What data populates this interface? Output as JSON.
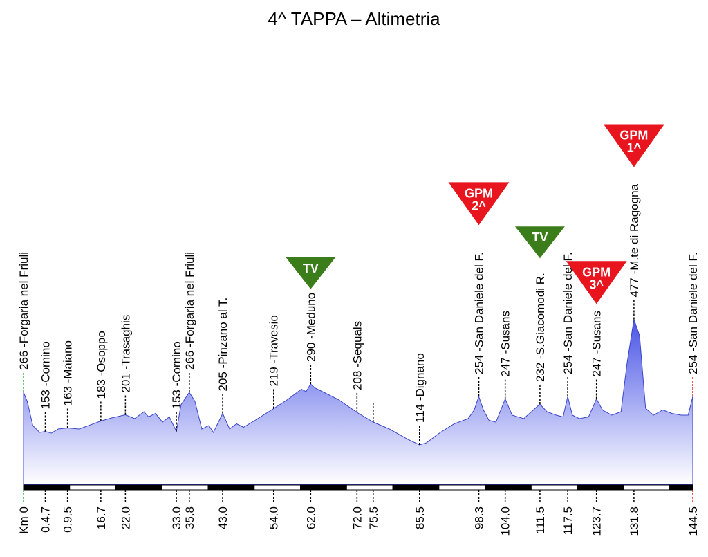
{
  "title": "4^ TAPPA – Altimetria",
  "colors": {
    "start": "#3cb44b",
    "finish": "#e52020",
    "profile_top": "#4a55e6",
    "profile_bottom": "#ffffff",
    "gpm": "#e8141e",
    "tv": "#3a7d1a"
  },
  "chart_data": {
    "type": "area",
    "xlim": [
      0,
      144.5
    ],
    "ylim": [
      0,
      500
    ],
    "profile": [
      [
        0,
        266
      ],
      [
        0.8,
        240
      ],
      [
        2,
        170
      ],
      [
        3.5,
        150
      ],
      [
        4.7,
        153
      ],
      [
        6,
        148
      ],
      [
        7.5,
        160
      ],
      [
        9.5,
        163
      ],
      [
        12,
        160
      ],
      [
        16.7,
        183
      ],
      [
        19,
        192
      ],
      [
        22,
        201
      ],
      [
        24,
        190
      ],
      [
        26,
        210
      ],
      [
        27,
        195
      ],
      [
        28.5,
        205
      ],
      [
        30,
        180
      ],
      [
        31.5,
        195
      ],
      [
        33,
        153
      ],
      [
        34,
        230
      ],
      [
        35.8,
        266
      ],
      [
        37,
        240
      ],
      [
        38.5,
        160
      ],
      [
        40,
        170
      ],
      [
        41,
        150
      ],
      [
        42,
        178
      ],
      [
        43,
        205
      ],
      [
        44.5,
        160
      ],
      [
        46,
        175
      ],
      [
        47.5,
        165
      ],
      [
        50,
        185
      ],
      [
        54,
        219
      ],
      [
        57,
        245
      ],
      [
        60,
        275
      ],
      [
        61,
        268
      ],
      [
        62,
        290
      ],
      [
        63,
        278
      ],
      [
        65,
        265
      ],
      [
        68,
        245
      ],
      [
        72,
        208
      ],
      [
        75.5,
        180
      ],
      [
        79,
        160
      ],
      [
        83,
        130
      ],
      [
        85.5,
        114
      ],
      [
        87,
        120
      ],
      [
        90,
        150
      ],
      [
        93,
        175
      ],
      [
        96,
        190
      ],
      [
        97.3,
        215
      ],
      [
        98.3,
        254
      ],
      [
        99.3,
        215
      ],
      [
        100.5,
        185
      ],
      [
        102,
        180
      ],
      [
        104,
        247
      ],
      [
        105.5,
        200
      ],
      [
        108,
        190
      ],
      [
        111.5,
        232
      ],
      [
        113,
        210
      ],
      [
        115,
        200
      ],
      [
        116.5,
        195
      ],
      [
        117.5,
        254
      ],
      [
        118.5,
        200
      ],
      [
        120,
        190
      ],
      [
        122,
        195
      ],
      [
        123.7,
        247
      ],
      [
        125,
        215
      ],
      [
        127,
        200
      ],
      [
        129,
        210
      ],
      [
        130.3,
        350
      ],
      [
        131.8,
        477
      ],
      [
        133,
        430
      ],
      [
        134.3,
        220
      ],
      [
        136,
        200
      ],
      [
        138,
        215
      ],
      [
        140,
        205
      ],
      [
        142,
        200
      ],
      [
        143.5,
        200
      ],
      [
        144.5,
        254
      ]
    ],
    "waypoints": [
      {
        "km": 0,
        "km_label": "Km 0",
        "alt": 266,
        "name": "Forgaria nel Friuli",
        "label": "266 -Forgaria nel Friuli",
        "type": "start"
      },
      {
        "km": 4.7,
        "km_label": "0.4.7",
        "alt": 153,
        "label": "153 -Cornino"
      },
      {
        "km": 9.5,
        "km_label": "0.9.5",
        "alt": 163,
        "label": "163 -Maiano"
      },
      {
        "km": 16.7,
        "km_label": "16.7",
        "alt": 183,
        "label": "183 -Osoppo"
      },
      {
        "km": 22.0,
        "km_label": "22.0",
        "alt": 201,
        "label": "201 -Trasaghis"
      },
      {
        "km": 33.0,
        "km_label": "33.0",
        "alt": 153,
        "label": "153 -Cornino"
      },
      {
        "km": 35.8,
        "km_label": "35.8",
        "alt": 266,
        "label": "266 -Forgaria nel Friuli"
      },
      {
        "km": 43.0,
        "km_label": "43.0",
        "alt": 205,
        "label": "205 -Pinzano al T."
      },
      {
        "km": 54.0,
        "km_label": "54.0",
        "alt": 219,
        "label": "219 -Travesio"
      },
      {
        "km": 62.0,
        "km_label": "62.0",
        "alt": 290,
        "label": "290 -Meduno",
        "marker": "TV"
      },
      {
        "km": 72.0,
        "km_label": "72.0",
        "alt": 208,
        "label": "208 -Sequals"
      },
      {
        "km": 75.5,
        "km_label": "75.5",
        "alt": 180,
        "label": ""
      },
      {
        "km": 85.5,
        "km_label": "85.5",
        "alt": 114,
        "label": "114 -Dignano"
      },
      {
        "km": 98.3,
        "km_label": "98.3",
        "alt": 254,
        "label": "254 -San Daniele del F.",
        "marker": "GPM",
        "marker_sub": "2^"
      },
      {
        "km": 104.0,
        "km_label": "104.0",
        "alt": 247,
        "label": "247 -Susans"
      },
      {
        "km": 111.5,
        "km_label": "111.5",
        "alt": 232,
        "label": "232 -S.Giacomodi R.",
        "marker": "TV"
      },
      {
        "km": 117.5,
        "km_label": "117.5",
        "alt": 254,
        "label": "254 -San Daniele del F."
      },
      {
        "km": 123.7,
        "km_label": "123.7",
        "alt": 247,
        "label": "247 -Susans",
        "marker": "GPM",
        "marker_sub": "3^"
      },
      {
        "km": 131.8,
        "km_label": "131.8",
        "alt": 477,
        "label": "477 -M.te di Ragogna",
        "marker": "GPM",
        "marker_sub": "1^"
      },
      {
        "km": 144.5,
        "km_label": "144.5",
        "alt": 254,
        "label": "254 -San Daniele del F.",
        "type": "finish"
      }
    ]
  }
}
